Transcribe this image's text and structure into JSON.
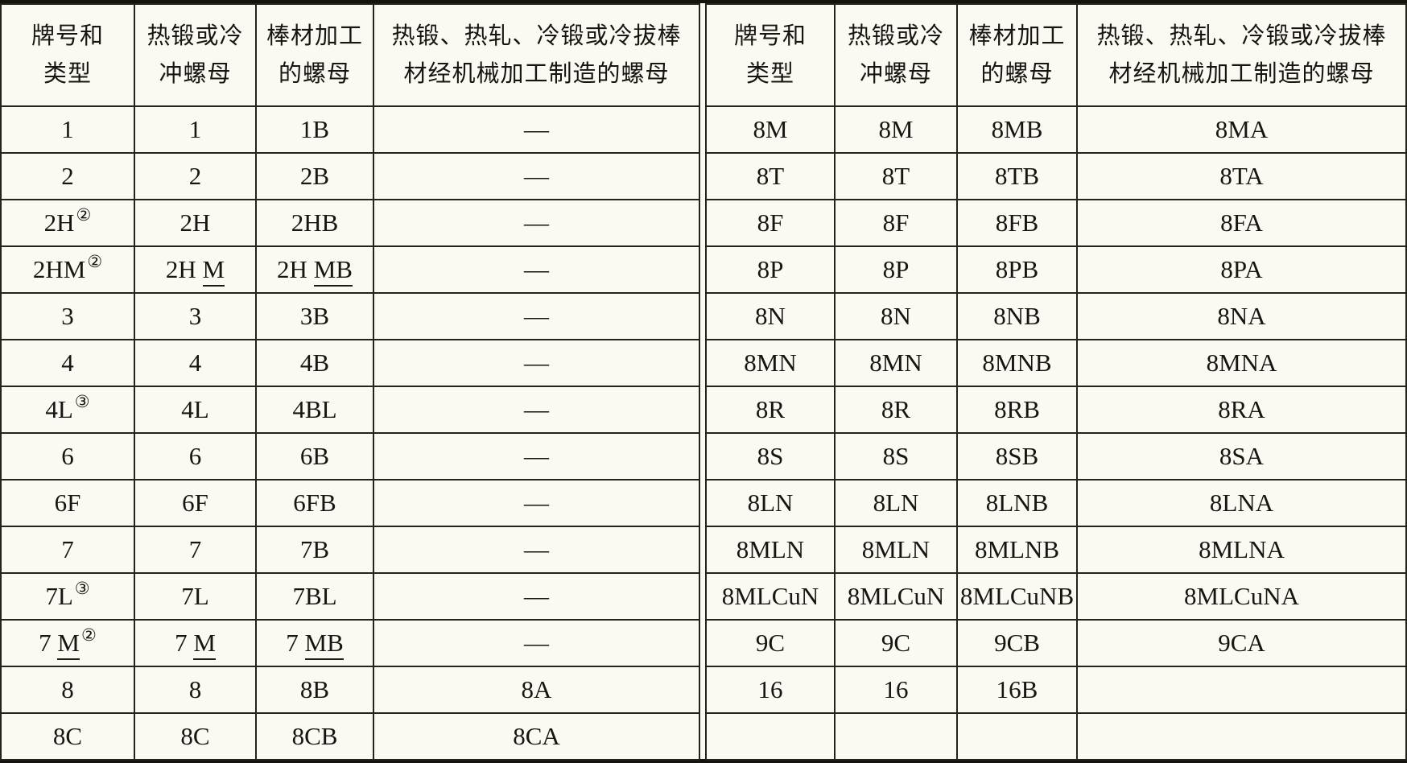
{
  "page": {
    "background_color": "#faf9f2",
    "grid_line_color": "#23221b",
    "outer_border_color": "#14130e"
  },
  "notation_legend": {
    "sup_marker": "text wrapped in ^ ^ is a circled footnote superscript",
    "underline_marker": "text wrapped in _ _ is underlined"
  },
  "headers": [
    {
      "line1": "牌号和",
      "line2": "类型"
    },
    {
      "line1": "热锻或冷",
      "line2": "冲螺母"
    },
    {
      "line1": "棒材加工",
      "line2": "的螺母"
    },
    {
      "line1": "热锻、热轧、冷锻或冷拔棒",
      "line2": "材经机械加工制造的螺母"
    }
  ],
  "left_table": {
    "rows": [
      [
        "1",
        "1",
        "1B",
        "—"
      ],
      [
        "2",
        "2",
        "2B",
        "—"
      ],
      [
        "2H^②^",
        "2H",
        "2HB",
        "—"
      ],
      [
        "2HM^②^",
        "2H _M_",
        "2H _MB_",
        "—"
      ],
      [
        "3",
        "3",
        "3B",
        "—"
      ],
      [
        "4",
        "4",
        "4B",
        "—"
      ],
      [
        "4L^③^",
        "4L",
        "4BL",
        "—"
      ],
      [
        "6",
        "6",
        "6B",
        "—"
      ],
      [
        "6F",
        "6F",
        "6FB",
        "—"
      ],
      [
        "7",
        "7",
        "7B",
        "—"
      ],
      [
        "7L^③^",
        "7L",
        "7BL",
        "—"
      ],
      [
        "7 _M_^②^",
        "7 _M_",
        "7 _MB_",
        "—"
      ],
      [
        "8",
        "8",
        "8B",
        "8A"
      ],
      [
        "8C",
        "8C",
        "8CB",
        "8CA"
      ]
    ]
  },
  "right_table": {
    "rows": [
      [
        "8M",
        "8M",
        "8MB",
        "8MA"
      ],
      [
        "8T",
        "8T",
        "8TB",
        "8TA"
      ],
      [
        "8F",
        "8F",
        "8FB",
        "8FA"
      ],
      [
        "8P",
        "8P",
        "8PB",
        "8PA"
      ],
      [
        "8N",
        "8N",
        "8NB",
        "8NA"
      ],
      [
        "8MN",
        "8MN",
        "8MNB",
        "8MNA"
      ],
      [
        "8R",
        "8R",
        "8RB",
        "8RA"
      ],
      [
        "8S",
        "8S",
        "8SB",
        "8SA"
      ],
      [
        "8LN",
        "8LN",
        "8LNB",
        "8LNA"
      ],
      [
        "8MLN",
        "8MLN",
        "8MLNB",
        "8MLNA"
      ],
      [
        "8MLCuN",
        "8MLCuN",
        "8MLCuNB",
        "8MLCuNA"
      ],
      [
        "9C",
        "9C",
        "9CB",
        "9CA"
      ],
      [
        "16",
        "16",
        "16B",
        ""
      ],
      [
        "",
        "",
        "",
        ""
      ]
    ]
  }
}
